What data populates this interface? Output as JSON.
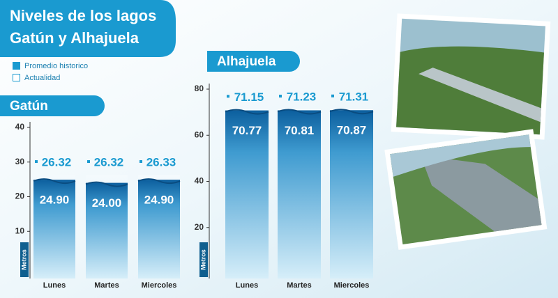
{
  "header": {
    "title_lines": [
      "Niveles de los lagos",
      "Gatún y Alhajuela"
    ]
  },
  "chart_data": [
    {
      "type": "bar",
      "title": "Gatún",
      "ylabel": "Metros",
      "categories": [
        "Lunes",
        "Martes",
        "Miercoles"
      ],
      "series": [
        {
          "name": "Promedio historico",
          "color": "#1a9ad0",
          "values": [
            26.32,
            26.32,
            26.33
          ]
        },
        {
          "name": "Actualidad",
          "color": "#1f7fc0",
          "values": [
            24.9,
            24.0,
            24.9
          ],
          "value_labels": [
            "24.90",
            "24.00",
            "24.90"
          ]
        }
      ],
      "ylim": [
        0,
        40
      ],
      "yticks": [
        10,
        20,
        30,
        40
      ]
    },
    {
      "type": "bar",
      "title": "Alhajuela",
      "ylabel": "Metros",
      "categories": [
        "Lunes",
        "Martes",
        "Miercoles"
      ],
      "series": [
        {
          "name": "Promedio historico",
          "color": "#1a9ad0",
          "values": [
            71.15,
            71.23,
            71.31
          ]
        },
        {
          "name": "Actualidad",
          "color": "#1f7fc0",
          "values": [
            70.77,
            70.81,
            70.87
          ]
        }
      ],
      "ylim": [
        0,
        80
      ],
      "yticks": [
        20,
        40,
        60,
        80
      ]
    }
  ]
}
